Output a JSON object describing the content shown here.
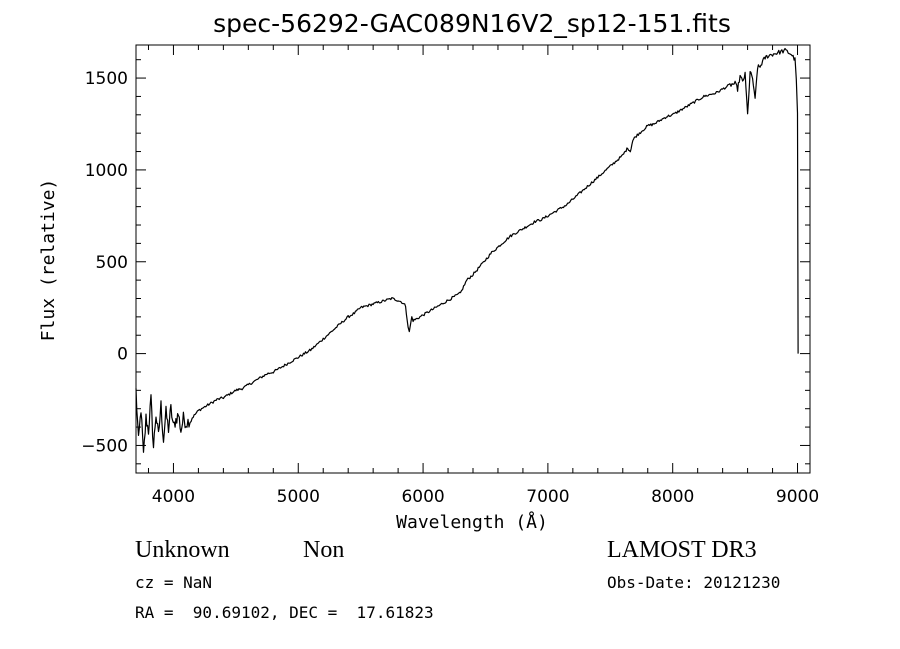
{
  "chart_data": {
    "type": "line",
    "title": "spec-56292-GAC089N16V2_sp12-151.fits",
    "xlabel": "Wavelength (Å)",
    "ylabel": "Flux (relative)",
    "xlim": [
      3700,
      9100
    ],
    "ylim": [
      -650,
      1680
    ],
    "xticks": [
      4000,
      5000,
      6000,
      7000,
      8000,
      9000
    ],
    "xtick_labels": [
      "4000",
      "5000",
      "6000",
      "7000",
      "8000",
      "9000"
    ],
    "yticks": [
      -500,
      0,
      500,
      1000,
      1500
    ],
    "ytick_labels": [
      "−500",
      "0",
      "500",
      "1000",
      "1500"
    ],
    "series": [
      {
        "name": "flux",
        "x": [
          3700,
          3720,
          3740,
          3760,
          3780,
          3800,
          3820,
          3840,
          3860,
          3880,
          3900,
          3920,
          3940,
          3960,
          3980,
          4000,
          4020,
          4040,
          4060,
          4080,
          4100,
          4150,
          4200,
          4250,
          4300,
          4350,
          4400,
          4450,
          4500,
          4550,
          4600,
          4650,
          4700,
          4750,
          4800,
          4850,
          4900,
          4950,
          5000,
          5050,
          5100,
          5150,
          5200,
          5250,
          5300,
          5350,
          5400,
          5450,
          5500,
          5550,
          5600,
          5650,
          5700,
          5750,
          5800,
          5830,
          5860,
          5880,
          5890,
          5900,
          5910,
          5920,
          5950,
          6000,
          6050,
          6100,
          6150,
          6200,
          6250,
          6300,
          6350,
          6400,
          6450,
          6500,
          6550,
          6600,
          6650,
          6700,
          6750,
          6800,
          6850,
          6900,
          6950,
          7000,
          7050,
          7100,
          7150,
          7200,
          7250,
          7300,
          7350,
          7400,
          7450,
          7500,
          7550,
          7600,
          7620,
          7640,
          7660,
          7680,
          7700,
          7750,
          7800,
          7850,
          7900,
          7950,
          8000,
          8050,
          8100,
          8150,
          8200,
          8250,
          8300,
          8350,
          8400,
          8450,
          8500,
          8520,
          8540,
          8560,
          8580,
          8600,
          8620,
          8640,
          8660,
          8680,
          8700,
          8720,
          8740,
          8760,
          8800,
          8850,
          8900,
          8950,
          8980,
          8990,
          9000,
          9005
        ],
        "values": [
          -200,
          -480,
          -300,
          -560,
          -350,
          -420,
          -250,
          -510,
          -330,
          -450,
          -280,
          -470,
          -320,
          -410,
          -300,
          -400,
          -360,
          -330,
          -420,
          -350,
          -380,
          -350,
          -310,
          -290,
          -270,
          -250,
          -240,
          -220,
          -200,
          -190,
          -170,
          -150,
          -130,
          -110,
          -100,
          -80,
          -60,
          -40,
          -20,
          0,
          20,
          50,
          80,
          110,
          140,
          170,
          200,
          220,
          250,
          260,
          270,
          280,
          290,
          300,
          290,
          280,
          260,
          140,
          120,
          160,
          200,
          180,
          190,
          210,
          230,
          250,
          270,
          290,
          310,
          330,
          400,
          430,
          470,
          510,
          550,
          580,
          610,
          640,
          660,
          680,
          700,
          720,
          730,
          750,
          770,
          790,
          810,
          840,
          870,
          900,
          930,
          960,
          990,
          1020,
          1050,
          1080,
          1100,
          1120,
          1100,
          1160,
          1180,
          1210,
          1240,
          1250,
          1270,
          1290,
          1300,
          1320,
          1340,
          1360,
          1380,
          1400,
          1410,
          1420,
          1440,
          1460,
          1470,
          1440,
          1510,
          1480,
          1520,
          1300,
          1530,
          1500,
          1380,
          1560,
          1560,
          1590,
          1610,
          1620,
          1630,
          1640,
          1650,
          1630,
          1600,
          1500,
          1300,
          0
        ]
      }
    ],
    "grid": false,
    "legend": "none"
  },
  "footer": {
    "class_label": "Unknown",
    "subclass_label": "Non",
    "survey": "LAMOST DR3",
    "cz": "cz = NaN",
    "obs_date": "Obs-Date: 20121230",
    "coords": "RA =  90.69102, DEC =  17.61823"
  }
}
